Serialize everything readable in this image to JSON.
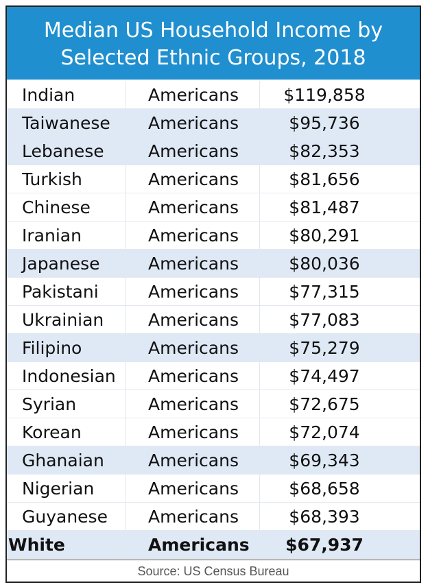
{
  "header": {
    "title": "Median US Household Income by Selected Ethnic Groups, 2018",
    "background_color": "#1f8fd0"
  },
  "chart_data": {
    "type": "table",
    "title": "Median US Household Income by Selected Ethnic Groups, 2018",
    "rows": [
      {
        "group": "Indian",
        "suffix": "Americans",
        "income": "$119,858",
        "value": 119858
      },
      {
        "group": "Taiwanese",
        "suffix": "Americans",
        "income": "$95,736",
        "value": 95736
      },
      {
        "group": "Lebanese",
        "suffix": "Americans",
        "income": "$82,353",
        "value": 82353
      },
      {
        "group": "Turkish",
        "suffix": "Americans",
        "income": "$81,656",
        "value": 81656
      },
      {
        "group": "Chinese",
        "suffix": "Americans",
        "income": "$81,487",
        "value": 81487
      },
      {
        "group": "Iranian",
        "suffix": "Americans",
        "income": "$80,291",
        "value": 80291
      },
      {
        "group": "Japanese",
        "suffix": "Americans",
        "income": "$80,036",
        "value": 80036
      },
      {
        "group": "Pakistani",
        "suffix": "Americans",
        "income": "$77,315",
        "value": 77315
      },
      {
        "group": "Ukrainian",
        "suffix": "Americans",
        "income": "$77,083",
        "value": 77083
      },
      {
        "group": "Filipino",
        "suffix": "Americans",
        "income": "$75,279",
        "value": 75279
      },
      {
        "group": "Indonesian",
        "suffix": "Americans",
        "income": "$74,497",
        "value": 74497
      },
      {
        "group": "Syrian",
        "suffix": "Americans",
        "income": "$72,675",
        "value": 72675
      },
      {
        "group": "Korean",
        "suffix": "Americans",
        "income": "$72,074",
        "value": 72074
      },
      {
        "group": "Ghanaian",
        "suffix": "Americans",
        "income": "$69,343",
        "value": 69343
      },
      {
        "group": "Nigerian",
        "suffix": "Americans",
        "income": "$68,658",
        "value": 68658
      },
      {
        "group": "Guyanese",
        "suffix": "Americans",
        "income": "$68,393",
        "value": 68393
      },
      {
        "group": "White",
        "suffix": "Americans",
        "income": "$67,937",
        "value": 67937,
        "bold": true
      }
    ],
    "alt_row_color": "#dfe9f5"
  },
  "footer": {
    "source": "Source: US Census Bureau"
  }
}
